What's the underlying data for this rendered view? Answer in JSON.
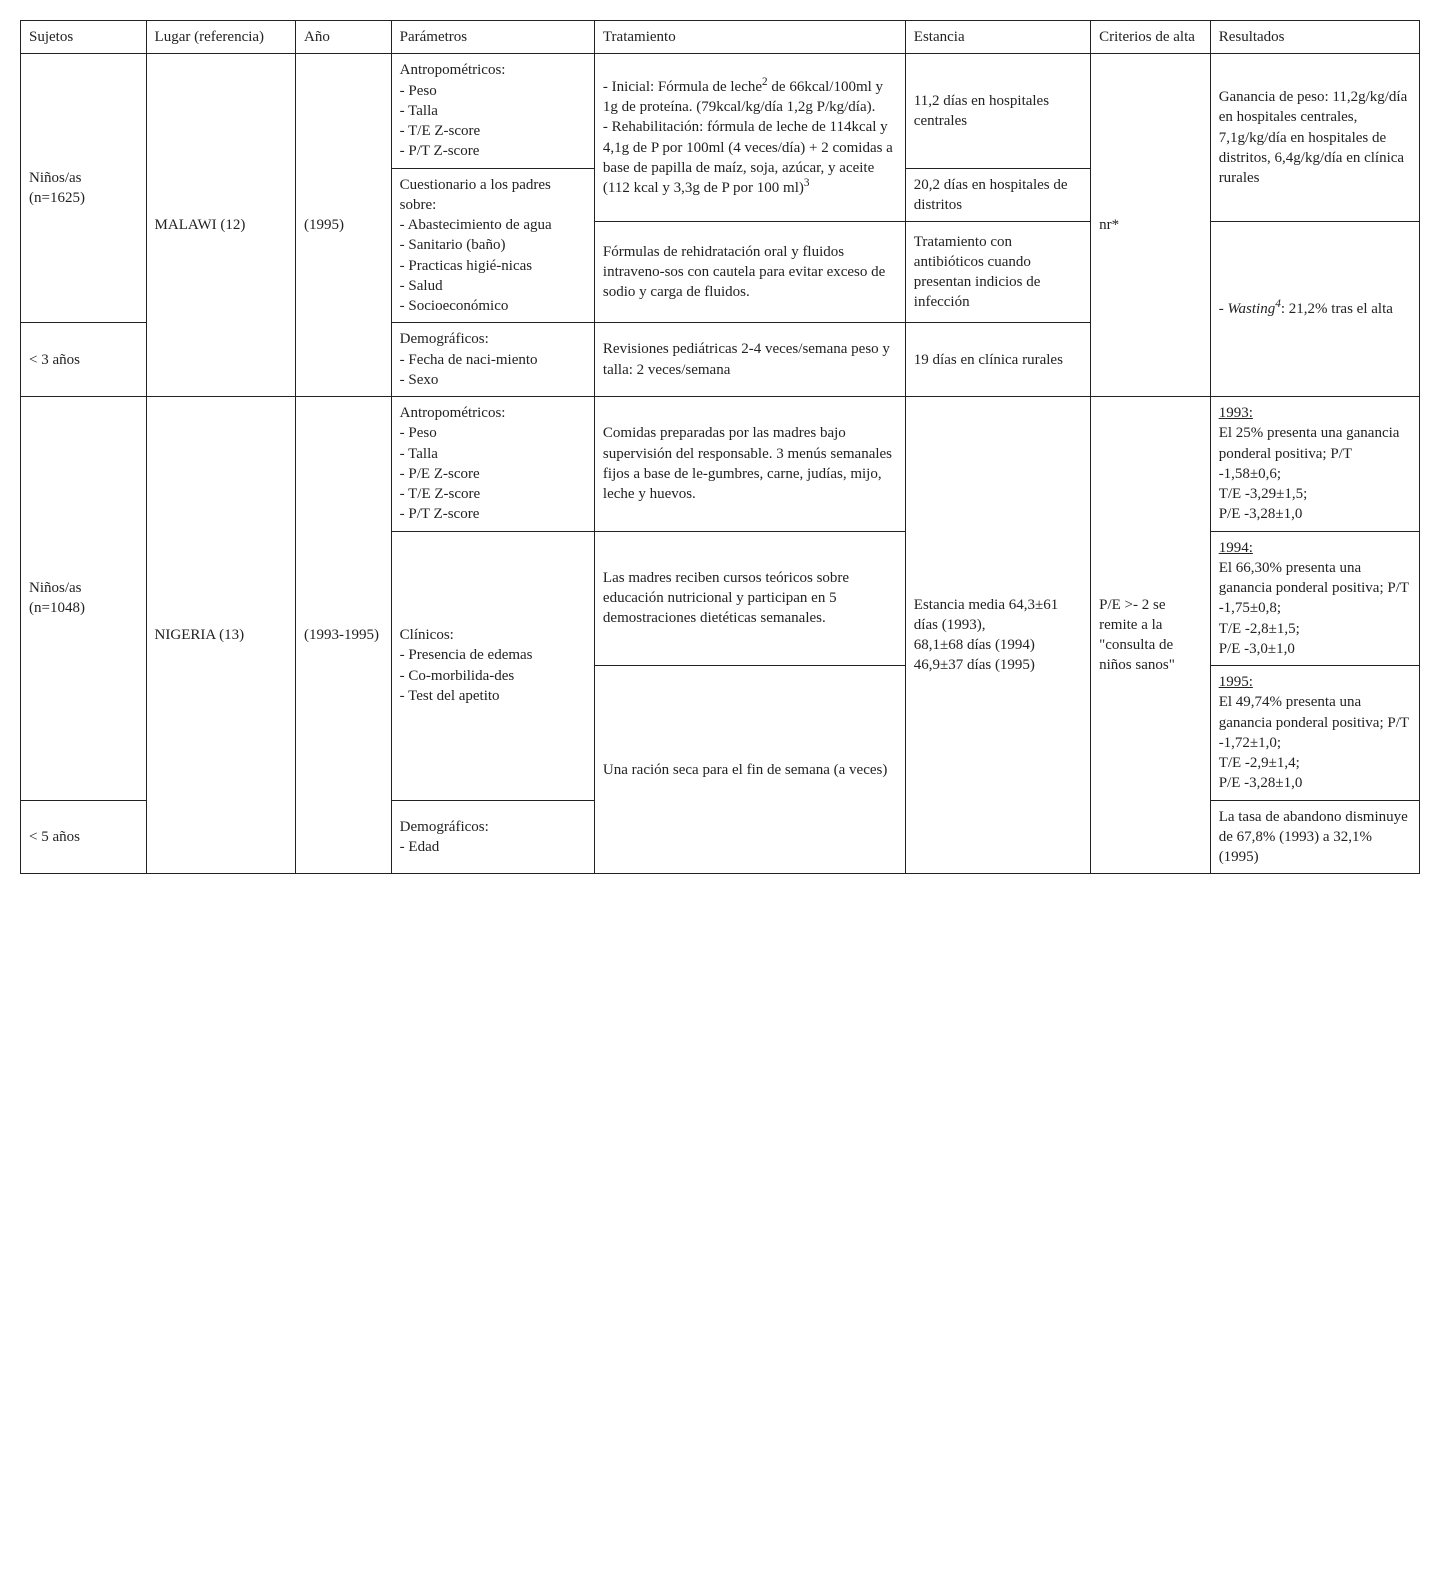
{
  "headers": {
    "sujetos": "Sujetos",
    "lugar": "Lugar (referencia)",
    "ano": "Año",
    "parametros": "Parámetros",
    "tratamiento": "Tratamiento",
    "estancia": "Estancia",
    "criterios": "Criterios de alta",
    "resultados": "Resultados"
  },
  "study1": {
    "sujetos_a": "Niños/as (n=1625)",
    "sujetos_b": "< 3 años",
    "lugar": "MALAWI (12)",
    "ano": "(1995)",
    "param1": "Antropométricos:\n- Peso\n- Talla\n- T/E Z-score\n- P/T Z-score",
    "param2": "Cuestionario a los padres sobre:\n- Abastecimiento de agua\n- Sanitario (baño)\n- Practicas higié-nicas\n- Salud\n- Socioeconómico",
    "param3": "Demográficos:\n- Fecha de naci-miento\n- Sexo",
    "trat1_pre": "- Inicial: Fórmula de leche",
    "trat1_sup": "2",
    "trat1_mid": " de 66kcal/100ml y 1g de proteína. (79kcal/kg/día 1,2g P/kg/día).\n- Rehabilitación: fórmula de leche de 114kcal y 4,1g de P por 100ml (4 veces/día) + 2 comidas a base de papilla de maíz, soja, azúcar, y aceite (112 kcal y 3,3g de P por 100 ml)",
    "trat1_sup2": "3",
    "trat2": "Fórmulas de rehidratación oral y fluidos intraveno-sos con cautela para evitar exceso de sodio y carga de fluidos.",
    "trat3": "Revisiones pediátricas 2-4 veces/semana peso y talla: 2 veces/semana",
    "est1": "11,2 días en hospitales centrales",
    "est2": "20,2 días en hospitales de distritos",
    "est3": "Tratamiento con antibióticos cuando presentan indicios de infección",
    "est4": "19 días en clínica rurales",
    "crit": "nr*",
    "res1": "Ganancia de peso: 11,2g/kg/día en hospitales centrales, 7,1g/kg/día en hospitales de distritos, 6,4g/kg/día en clínica rurales",
    "res2_pre": "- ",
    "res2_it": "Wasting",
    "res2_sup": "4",
    "res2_post": ": 21,2% tras el alta"
  },
  "study2": {
    "sujetos_a": "Niños/as (n=1048)",
    "sujetos_b": "< 5 años",
    "lugar": "NIGERIA (13)",
    "ano": "(1993-1995)",
    "param1": "Antropométricos:\n- Peso\n- Talla\n- P/E Z-score\n- T/E Z-score\n- P/T Z-score",
    "param2": "Clínicos:\n- Presencia de edemas\n- Co-morbilida-des\n- Test del apetito",
    "param3": "Demográficos:\n- Edad",
    "trat1": "Comidas preparadas por las madres bajo supervisión del responsable. 3 menús semanales fijos a base de le-gumbres, carne, judías, mijo, leche y huevos.",
    "trat2": "Las madres reciben cursos teóricos sobre educación nutricional y participan en 5 demostraciones dietéticas semanales.",
    "trat3": "Una ración seca para el fin de semana (a veces)",
    "est": "Estancia media 64,3±61 días (1993),\n68,1±68 días (1994)\n46,9±37 días (1995)",
    "crit": "P/E >- 2 se remite a la \"consulta de niños sanos\"",
    "res1_head": "1993:",
    "res1_body": "El 25% presenta una ganancia ponderal positiva; P/T -1,58±0,6;\nT/E -3,29±1,5;\nP/E -3,28±1,0",
    "res2_head": "1994:",
    "res2_body": "El 66,30% presenta una ganancia ponderal positiva; P/T -1,75±0,8;\nT/E -2,8±1,5;\nP/E -3,0±1,0",
    "res3_head": "1995:",
    "res3_body": "El 49,74% presenta una ganancia ponderal positiva; P/T -1,72±1,0;\nT/E -2,9±1,4;\nP/E -3,28±1,0",
    "res4": "La tasa de abandono disminuye de 67,8% (1993) a 32,1% (1995)"
  }
}
